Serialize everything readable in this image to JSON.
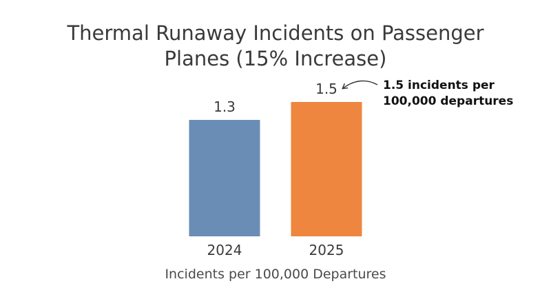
{
  "title_lines": [
    "Thermal Runaway Incidents on Passenger",
    "Planes (15% Increase)"
  ],
  "chart_data": {
    "type": "bar",
    "title": "Thermal Runaway Incidents on Passenger Planes (15% Increase)",
    "categories": [
      "2024",
      "2025"
    ],
    "values": [
      1.3,
      1.5
    ],
    "data_labels": [
      "1.3",
      "1.5"
    ],
    "xlabel": "Incidents per 100,000 Departures",
    "ylabel": "",
    "ylim": [
      0,
      1.5
    ],
    "grid": false,
    "legend": "none",
    "colors": [
      "#6a8db5",
      "#ef8640"
    ],
    "annotation": {
      "lines": [
        "1.5 incidents per",
        "100,000 departures"
      ],
      "target_category": "2025"
    }
  }
}
